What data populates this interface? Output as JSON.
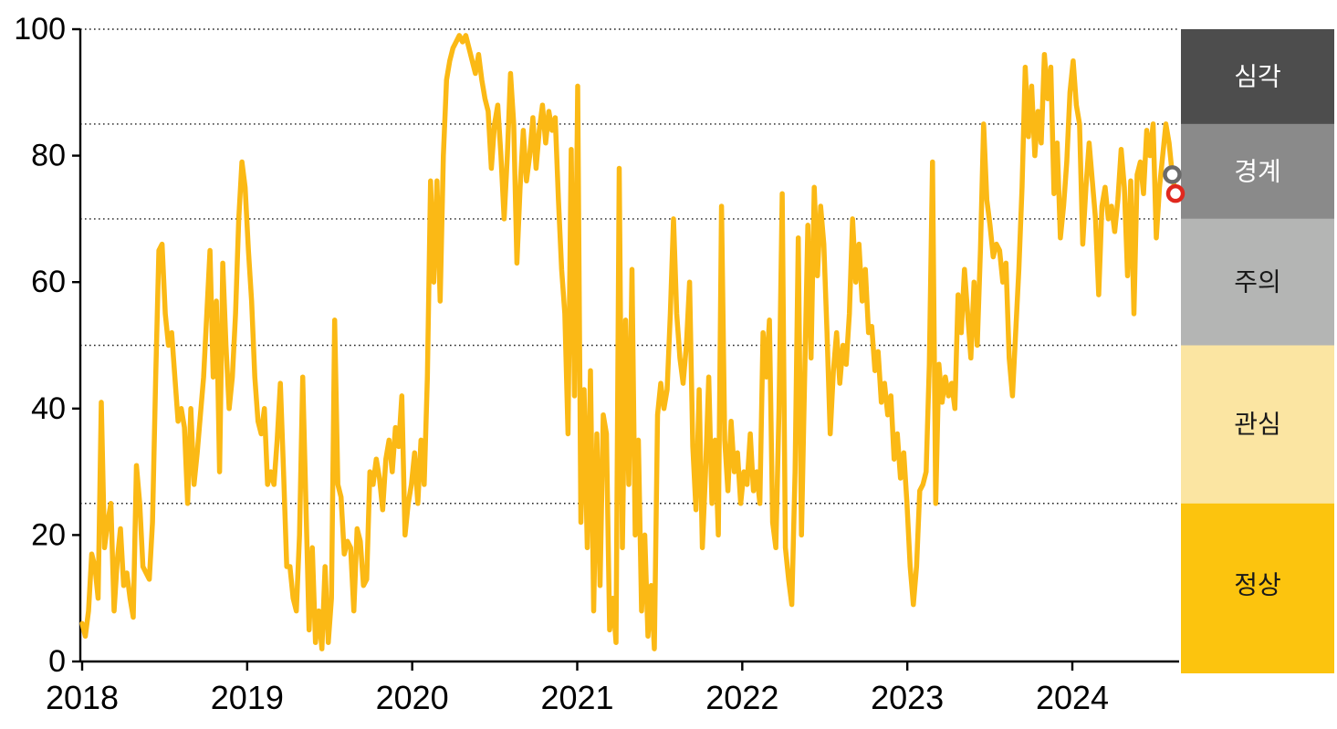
{
  "chart_data": {
    "type": "line",
    "title": "",
    "xlabel": "",
    "ylabel": "",
    "x_axis": {
      "tick_labels": [
        "2018",
        "2019",
        "2020",
        "2021",
        "2022",
        "2023",
        "2024"
      ],
      "unit": "year",
      "frequency": "weekly"
    },
    "y_axis": {
      "tick_labels": [
        "0",
        "20",
        "40",
        "60",
        "80",
        "100"
      ],
      "ticks": [
        0,
        20,
        40,
        60,
        80,
        100
      ],
      "range": [
        0,
        100
      ]
    },
    "gridlines_at": [
      100,
      85,
      70,
      50,
      25
    ],
    "grid_style": "dotted",
    "legend_position": "right-band",
    "zones": [
      {
        "label": "심각",
        "range": [
          85,
          100
        ],
        "color": "#4D4D4D",
        "text_color": "#FFFFFF"
      },
      {
        "label": "경계",
        "range": [
          70,
          85
        ],
        "color": "#8A8A8A",
        "text_color": "#FFFFFF"
      },
      {
        "label": "주의",
        "range": [
          50,
          70
        ],
        "color": "#B4B5B4",
        "text_color": "#1A1A1A"
      },
      {
        "label": "관심",
        "range": [
          25,
          50
        ],
        "color": "#FBE5A2",
        "text_color": "#1A1A1A"
      },
      {
        "label": "정상",
        "range": [
          0,
          25
        ],
        "color": "#FCC40E",
        "text_color": "#1A1A1A"
      }
    ],
    "series": [
      {
        "name": "weekly-risk-index",
        "color": "#FBB915",
        "start_year": 2018,
        "weekly_values": [
          6,
          4,
          8,
          17,
          15,
          10,
          41,
          18,
          22,
          25,
          8,
          16,
          21,
          12,
          14,
          10,
          7,
          31,
          25,
          15,
          14,
          13,
          22,
          45,
          65,
          66,
          55,
          50,
          52,
          45,
          38,
          40,
          37,
          25,
          40,
          28,
          33,
          39,
          45,
          55,
          65,
          45,
          57,
          30,
          63,
          50,
          40,
          45,
          55,
          70,
          79,
          75,
          65,
          57,
          45,
          38,
          36,
          40,
          28,
          30,
          28,
          35,
          44,
          30,
          15,
          15,
          10,
          8,
          20,
          45,
          25,
          5,
          18,
          3,
          8,
          2,
          15,
          3,
          10,
          54,
          28,
          26,
          17,
          19,
          18,
          8,
          21,
          19,
          12,
          13,
          30,
          28,
          32,
          29,
          24,
          32,
          35,
          30,
          37,
          34,
          42,
          20,
          25,
          28,
          33,
          25,
          35,
          28,
          45,
          76,
          60,
          76,
          57,
          80,
          92,
          95,
          97,
          98,
          99,
          98,
          99,
          97,
          95,
          93,
          96,
          92,
          89,
          87,
          78,
          85,
          88,
          80,
          70,
          80,
          93,
          85,
          63,
          75,
          84,
          76,
          80,
          86,
          78,
          84,
          88,
          82,
          87,
          84,
          86,
          73,
          62,
          55,
          36,
          81,
          42,
          91,
          22,
          43,
          18,
          46,
          8,
          36,
          12,
          39,
          36,
          5,
          10,
          3,
          78,
          18,
          54,
          28,
          62,
          20,
          35,
          8,
          20,
          4,
          12,
          2,
          39,
          44,
          40,
          43,
          55,
          70,
          55,
          48,
          44,
          50,
          60,
          34,
          24,
          43,
          18,
          30,
          45,
          25,
          35,
          20,
          72,
          35,
          27,
          38,
          30,
          33,
          25,
          30,
          28,
          36,
          27,
          30,
          25,
          52,
          45,
          54,
          22,
          18,
          40,
          74,
          18,
          13,
          9,
          30,
          67,
          20,
          45,
          69,
          48,
          75,
          61,
          72,
          66,
          52,
          36,
          46,
          52,
          44,
          50,
          47,
          55,
          70,
          60,
          66,
          57,
          62,
          52,
          53,
          46,
          49,
          41,
          44,
          39,
          42,
          32,
          36,
          29,
          33,
          25,
          15,
          9,
          15,
          27,
          28,
          30,
          47,
          79,
          25,
          47,
          41,
          45,
          42,
          44,
          40,
          58,
          52,
          62,
          55,
          48,
          60,
          50,
          65,
          85,
          73,
          69,
          64,
          66,
          65,
          60,
          63,
          48,
          42,
          52,
          62,
          75,
          94,
          83,
          91,
          80,
          87,
          82,
          96,
          89,
          94,
          74,
          82,
          67,
          72,
          79,
          90,
          95,
          88,
          85,
          66,
          75,
          82,
          76,
          70,
          58,
          72,
          75,
          70,
          72,
          68,
          73,
          81,
          75,
          61,
          76,
          55,
          77,
          79,
          74,
          84,
          80,
          85,
          67,
          75,
          80,
          85,
          82,
          77,
          74
        ]
      }
    ],
    "end_markers": [
      {
        "name": "previous-week-point",
        "value": 77,
        "color": "#6B6B6B"
      },
      {
        "name": "latest-week-point",
        "value": 74,
        "color": "#E0281E"
      }
    ]
  }
}
